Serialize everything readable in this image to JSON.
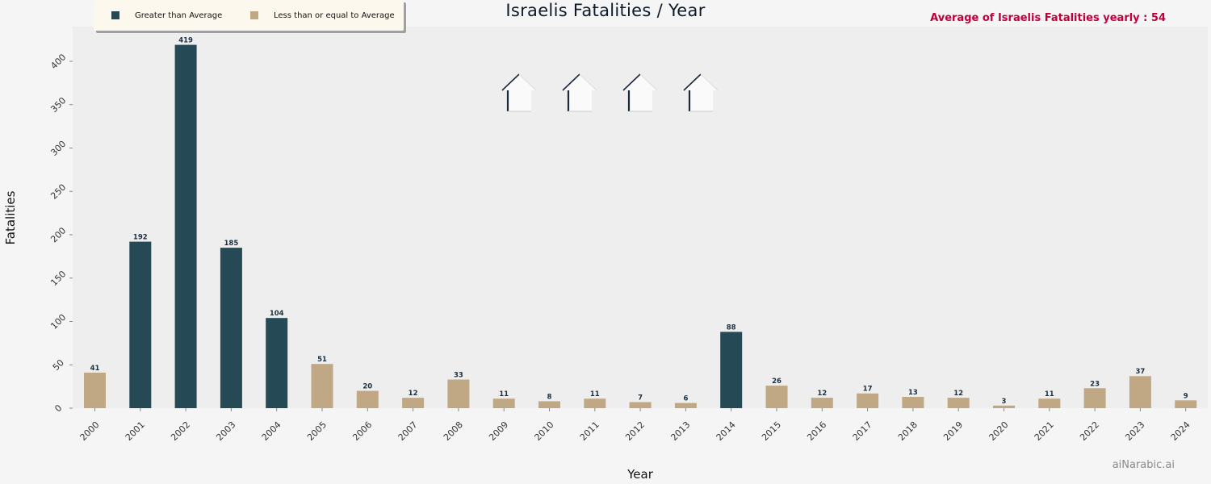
{
  "chart_data": {
    "type": "bar",
    "title": "Israelis Fatalities / Year",
    "xlabel": "Year",
    "ylabel": "Fatalities",
    "categories": [
      "2000",
      "2001",
      "2002",
      "2003",
      "2004",
      "2005",
      "2006",
      "2007",
      "2008",
      "2009",
      "2010",
      "2011",
      "2012",
      "2013",
      "2014",
      "2015",
      "2016",
      "2017",
      "2018",
      "2019",
      "2020",
      "2021",
      "2022",
      "2023",
      "2024"
    ],
    "values": [
      41,
      192,
      419,
      185,
      104,
      51,
      20,
      12,
      33,
      11,
      8,
      11,
      7,
      6,
      88,
      26,
      12,
      17,
      13,
      12,
      3,
      11,
      23,
      37,
      9
    ],
    "average": 54,
    "ylim": [
      0,
      440
    ],
    "yticks": [
      0,
      50,
      100,
      150,
      200,
      250,
      300,
      350,
      400
    ],
    "grid": false,
    "legend_position": "top-left",
    "legend": [
      {
        "label": "Greater than Average",
        "color": "#264a55"
      },
      {
        "label": "Less than or equal to Average",
        "color": "#c1a885"
      }
    ],
    "colors": {
      "above": "#264a55",
      "below": "#c1a885",
      "value_label": "#1b2f3f",
      "plot_bg": "#eeeeee"
    }
  },
  "annotation": {
    "text": "Average of Israelis Fatalities yearly : 54",
    "color": "#c0003c"
  },
  "watermark": "aiNarabic.ai",
  "decorations": {
    "icon": "house-icon",
    "count": 4
  }
}
